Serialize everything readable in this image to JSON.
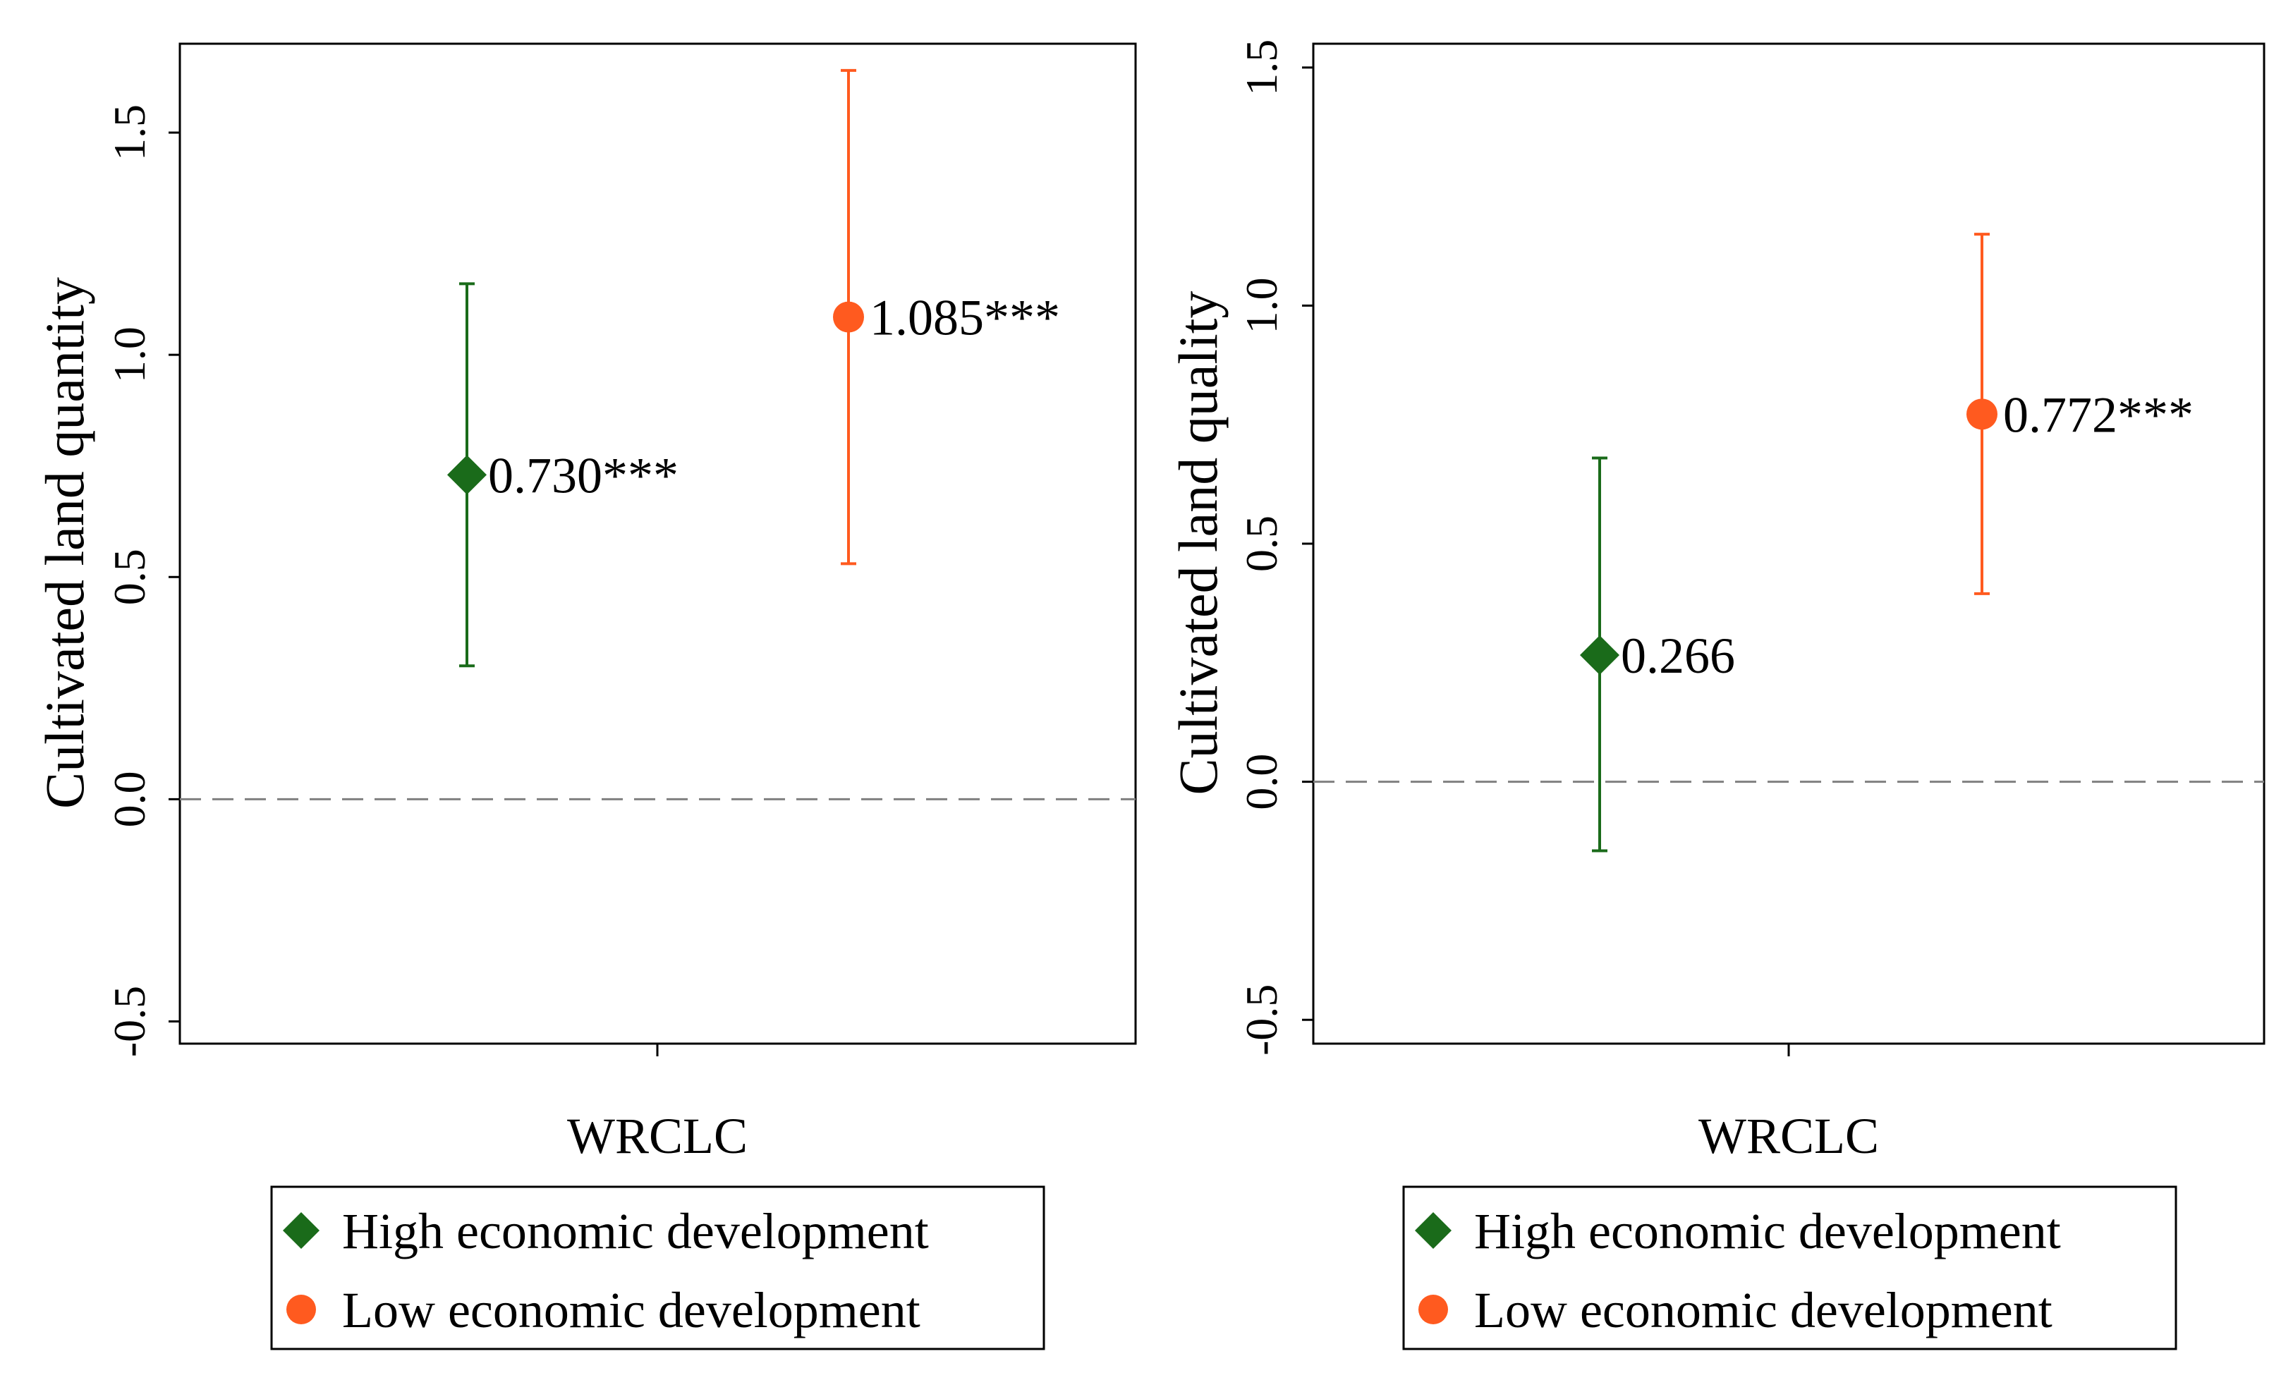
{
  "chart_data": [
    {
      "type": "scatter",
      "subtype": "coefficient-plot-with-confidence-intervals",
      "title": "",
      "xlabel": "WRCLC",
      "ylabel": "Cultivated land quantity",
      "ylim": [
        -0.55,
        1.7
      ],
      "yticks": [
        -0.5,
        0.0,
        0.5,
        1.0,
        1.5
      ],
      "ytick_labels": [
        "-0.5",
        "0.0",
        "0.5",
        "1.0",
        "1.5"
      ],
      "reference_line": {
        "y": 0,
        "style": "dashed",
        "color": "#808080"
      },
      "grid": false,
      "legend_position": "bottom",
      "series": [
        {
          "name": "High economic development",
          "marker": "diamond",
          "color": "#1a6b1a",
          "estimate": 0.73,
          "ci_low": 0.3,
          "ci_high": 1.16,
          "label": "0.730***"
        },
        {
          "name": "Low economic development",
          "marker": "circle",
          "color": "#ff5a1f",
          "estimate": 1.085,
          "ci_low": 0.53,
          "ci_high": 1.64,
          "label": "1.085***"
        }
      ]
    },
    {
      "type": "scatter",
      "subtype": "coefficient-plot-with-confidence-intervals",
      "title": "",
      "xlabel": "WRCLC",
      "ylabel": "Cultivated land quality",
      "ylim": [
        -0.55,
        1.55
      ],
      "yticks": [
        -0.5,
        0.0,
        0.5,
        1.0,
        1.5
      ],
      "ytick_labels": [
        "-0.5",
        "0.0",
        "0.5",
        "1.0",
        "1.5"
      ],
      "reference_line": {
        "y": 0,
        "style": "dashed",
        "color": "#808080"
      },
      "grid": false,
      "legend_position": "bottom",
      "series": [
        {
          "name": "High economic development",
          "marker": "diamond",
          "color": "#1a6b1a",
          "estimate": 0.266,
          "ci_low": -0.145,
          "ci_high": 0.68,
          "label": "0.266"
        },
        {
          "name": "Low economic development",
          "marker": "circle",
          "color": "#ff5a1f",
          "estimate": 0.772,
          "ci_low": 0.395,
          "ci_high": 1.15,
          "label": "0.772***"
        }
      ]
    }
  ]
}
